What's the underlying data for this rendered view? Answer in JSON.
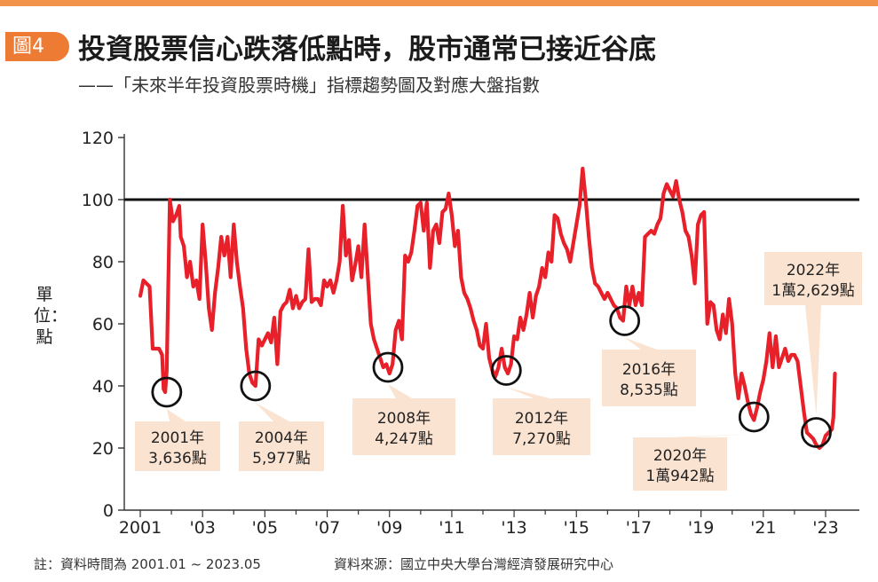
{
  "header": {
    "badge": "圖4",
    "title": "投資股票信心跌落低點時，股市通常已接近谷底",
    "subtitle": "——「未來半年投資股票時機」指標趨勢圖及對應大盤指數"
  },
  "footer": {
    "note": "註：資料時間為 2001.01 ~ 2023.05",
    "source": "資料來源：國立中央大學台灣經濟發展研究中心"
  },
  "colors": {
    "line": "#e8202a",
    "accent": "#ee7b33",
    "annotation_bg": "#fbe3d1",
    "reference_line": "#111111"
  },
  "chart_data": {
    "type": "line",
    "ylabel": "單位：點",
    "ylim": [
      0,
      120
    ],
    "yticks": [
      0,
      20,
      40,
      60,
      80,
      100,
      120
    ],
    "xlim": [
      2000.8,
      2024.0
    ],
    "xticks": [
      {
        "x": 2001,
        "label": "2001"
      },
      {
        "x": 2003,
        "label": "'03"
      },
      {
        "x": 2005,
        "label": "'05"
      },
      {
        "x": 2007,
        "label": "'07"
      },
      {
        "x": 2009,
        "label": "'09"
      },
      {
        "x": 2011,
        "label": "'11"
      },
      {
        "x": 2013,
        "label": "'13"
      },
      {
        "x": 2015,
        "label": "'15"
      },
      {
        "x": 2017,
        "label": "'17"
      },
      {
        "x": 2019,
        "label": "'19"
      },
      {
        "x": 2021,
        "label": "'21"
      },
      {
        "x": 2023,
        "label": "'23"
      }
    ],
    "reference_line": 100,
    "series": [
      {
        "points": [
          [
            2001.0,
            69
          ],
          [
            2001.1,
            74
          ],
          [
            2001.3,
            72
          ],
          [
            2001.4,
            52
          ],
          [
            2001.6,
            52
          ],
          [
            2001.7,
            50
          ],
          [
            2001.75,
            39
          ],
          [
            2001.8,
            38
          ],
          [
            2001.85,
            45
          ],
          [
            2001.95,
            100
          ],
          [
            2002.05,
            93
          ],
          [
            2002.15,
            95
          ],
          [
            2002.25,
            98
          ],
          [
            2002.3,
            88
          ],
          [
            2002.4,
            85
          ],
          [
            2002.5,
            75
          ],
          [
            2002.6,
            80
          ],
          [
            2002.7,
            72
          ],
          [
            2002.8,
            74
          ],
          [
            2002.9,
            68
          ],
          [
            2003.0,
            92
          ],
          [
            2003.1,
            80
          ],
          [
            2003.2,
            65
          ],
          [
            2003.3,
            58
          ],
          [
            2003.4,
            70
          ],
          [
            2003.5,
            78
          ],
          [
            2003.6,
            88
          ],
          [
            2003.7,
            82
          ],
          [
            2003.8,
            88
          ],
          [
            2003.9,
            75
          ],
          [
            2004.0,
            92
          ],
          [
            2004.1,
            80
          ],
          [
            2004.2,
            72
          ],
          [
            2004.3,
            65
          ],
          [
            2004.4,
            52
          ],
          [
            2004.5,
            44
          ],
          [
            2004.6,
            41
          ],
          [
            2004.7,
            40
          ],
          [
            2004.8,
            55
          ],
          [
            2004.9,
            53
          ],
          [
            2005.0,
            55
          ],
          [
            2005.1,
            57
          ],
          [
            2005.2,
            54
          ],
          [
            2005.3,
            62
          ],
          [
            2005.4,
            47
          ],
          [
            2005.5,
            64
          ],
          [
            2005.6,
            66
          ],
          [
            2005.7,
            67
          ],
          [
            2005.8,
            71
          ],
          [
            2005.9,
            65
          ],
          [
            2006.0,
            69
          ],
          [
            2006.1,
            65
          ],
          [
            2006.2,
            67
          ],
          [
            2006.3,
            68
          ],
          [
            2006.4,
            84
          ],
          [
            2006.5,
            67
          ],
          [
            2006.6,
            68
          ],
          [
            2006.7,
            68
          ],
          [
            2006.8,
            66
          ],
          [
            2006.9,
            74
          ],
          [
            2007.0,
            72
          ],
          [
            2007.1,
            74
          ],
          [
            2007.2,
            70
          ],
          [
            2007.3,
            74
          ],
          [
            2007.4,
            80
          ],
          [
            2007.5,
            98
          ],
          [
            2007.6,
            82
          ],
          [
            2007.7,
            87
          ],
          [
            2007.8,
            74
          ],
          [
            2007.9,
            79
          ],
          [
            2008.0,
            85
          ],
          [
            2008.1,
            75
          ],
          [
            2008.2,
            92
          ],
          [
            2008.3,
            76
          ],
          [
            2008.4,
            60
          ],
          [
            2008.5,
            55
          ],
          [
            2008.6,
            52
          ],
          [
            2008.7,
            49
          ],
          [
            2008.8,
            46
          ],
          [
            2008.9,
            47
          ],
          [
            2009.0,
            44
          ],
          [
            2009.1,
            47
          ],
          [
            2009.2,
            58
          ],
          [
            2009.3,
            61
          ],
          [
            2009.4,
            55
          ],
          [
            2009.5,
            82
          ],
          [
            2009.6,
            80
          ],
          [
            2009.7,
            83
          ],
          [
            2009.8,
            90
          ],
          [
            2009.9,
            98
          ],
          [
            2010.0,
            99
          ],
          [
            2010.1,
            90
          ],
          [
            2010.2,
            99
          ],
          [
            2010.3,
            78
          ],
          [
            2010.4,
            90
          ],
          [
            2010.5,
            92
          ],
          [
            2010.6,
            86
          ],
          [
            2010.7,
            96
          ],
          [
            2010.8,
            97
          ],
          [
            2010.9,
            102
          ],
          [
            2011.0,
            95
          ],
          [
            2011.1,
            85
          ],
          [
            2011.2,
            90
          ],
          [
            2011.3,
            75
          ],
          [
            2011.4,
            70
          ],
          [
            2011.5,
            68
          ],
          [
            2011.6,
            65
          ],
          [
            2011.7,
            61
          ],
          [
            2011.8,
            58
          ],
          [
            2011.9,
            53
          ],
          [
            2012.0,
            52
          ],
          [
            2012.1,
            60
          ],
          [
            2012.2,
            49
          ],
          [
            2012.3,
            45
          ],
          [
            2012.4,
            43
          ],
          [
            2012.5,
            46
          ],
          [
            2012.6,
            52
          ],
          [
            2012.7,
            46
          ],
          [
            2012.8,
            44
          ],
          [
            2012.9,
            47
          ],
          [
            2013.0,
            56
          ],
          [
            2013.1,
            55
          ],
          [
            2013.2,
            62
          ],
          [
            2013.3,
            58
          ],
          [
            2013.4,
            63
          ],
          [
            2013.5,
            70
          ],
          [
            2013.6,
            62
          ],
          [
            2013.7,
            69
          ],
          [
            2013.8,
            72
          ],
          [
            2013.9,
            78
          ],
          [
            2014.0,
            75
          ],
          [
            2014.1,
            83
          ],
          [
            2014.2,
            80
          ],
          [
            2014.3,
            95
          ],
          [
            2014.4,
            94
          ],
          [
            2014.5,
            89
          ],
          [
            2014.6,
            86
          ],
          [
            2014.7,
            84
          ],
          [
            2014.8,
            80
          ],
          [
            2014.9,
            86
          ],
          [
            2015.0,
            92
          ],
          [
            2015.1,
            98
          ],
          [
            2015.2,
            110
          ],
          [
            2015.3,
            100
          ],
          [
            2015.4,
            88
          ],
          [
            2015.5,
            78
          ],
          [
            2015.6,
            73
          ],
          [
            2015.7,
            72
          ],
          [
            2015.8,
            70
          ],
          [
            2015.9,
            68
          ],
          [
            2016.0,
            70
          ],
          [
            2016.1,
            68
          ],
          [
            2016.2,
            66
          ],
          [
            2016.3,
            65
          ],
          [
            2016.4,
            62
          ],
          [
            2016.5,
            61
          ],
          [
            2016.6,
            72
          ],
          [
            2016.7,
            66
          ],
          [
            2016.8,
            72
          ],
          [
            2016.9,
            66
          ],
          [
            2017.0,
            70
          ],
          [
            2017.1,
            66
          ],
          [
            2017.2,
            88
          ],
          [
            2017.3,
            89
          ],
          [
            2017.4,
            90
          ],
          [
            2017.5,
            89
          ],
          [
            2017.6,
            92
          ],
          [
            2017.7,
            94
          ],
          [
            2017.8,
            102
          ],
          [
            2017.9,
            105
          ],
          [
            2018.0,
            103
          ],
          [
            2018.1,
            101
          ],
          [
            2018.2,
            106
          ],
          [
            2018.3,
            100
          ],
          [
            2018.4,
            96
          ],
          [
            2018.5,
            90
          ],
          [
            2018.6,
            88
          ],
          [
            2018.7,
            82
          ],
          [
            2018.8,
            73
          ],
          [
            2018.9,
            92
          ],
          [
            2019.0,
            95
          ],
          [
            2019.1,
            96
          ],
          [
            2019.2,
            60
          ],
          [
            2019.3,
            67
          ],
          [
            2019.4,
            66
          ],
          [
            2019.5,
            58
          ],
          [
            2019.6,
            55
          ],
          [
            2019.7,
            63
          ],
          [
            2019.8,
            57
          ],
          [
            2019.9,
            68
          ],
          [
            2020.0,
            60
          ],
          [
            2020.1,
            44
          ],
          [
            2020.2,
            36
          ],
          [
            2020.3,
            44
          ],
          [
            2020.4,
            40
          ],
          [
            2020.5,
            35
          ],
          [
            2020.6,
            31
          ],
          [
            2020.7,
            29
          ],
          [
            2020.8,
            33
          ],
          [
            2020.9,
            38
          ],
          [
            2021.0,
            42
          ],
          [
            2021.1,
            48
          ],
          [
            2021.2,
            57
          ],
          [
            2021.3,
            46
          ],
          [
            2021.4,
            56
          ],
          [
            2021.5,
            46
          ],
          [
            2021.6,
            49
          ],
          [
            2021.7,
            52
          ],
          [
            2021.8,
            48
          ],
          [
            2021.9,
            50
          ],
          [
            2022.0,
            50
          ],
          [
            2022.1,
            48
          ],
          [
            2022.2,
            40
          ],
          [
            2022.3,
            32
          ],
          [
            2022.4,
            25
          ],
          [
            2022.5,
            24
          ],
          [
            2022.6,
            23
          ],
          [
            2022.7,
            21
          ],
          [
            2022.8,
            20
          ],
          [
            2022.9,
            21
          ],
          [
            2023.0,
            24
          ],
          [
            2023.1,
            25
          ],
          [
            2023.2,
            26
          ],
          [
            2023.25,
            30
          ],
          [
            2023.3,
            44
          ]
        ]
      }
    ],
    "annotations": [
      {
        "year_label": "2001年",
        "value_label": "3,636點",
        "x": 2001.85,
        "y": 38
      },
      {
        "year_label": "2004年",
        "value_label": "5,977點",
        "x": 2004.7,
        "y": 40
      },
      {
        "year_label": "2008年",
        "value_label": "4,247點",
        "x": 2008.95,
        "y": 46
      },
      {
        "year_label": "2012年",
        "value_label": "7,270點",
        "x": 2012.75,
        "y": 45
      },
      {
        "year_label": "2016年",
        "value_label": "8,535點",
        "x": 2016.55,
        "y": 61
      },
      {
        "year_label": "2020年",
        "value_label": "1萬942點",
        "x": 2020.7,
        "y": 30
      },
      {
        "year_label": "2022年",
        "value_label": "1萬2,629點",
        "x": 2022.7,
        "y": 25
      }
    ]
  }
}
